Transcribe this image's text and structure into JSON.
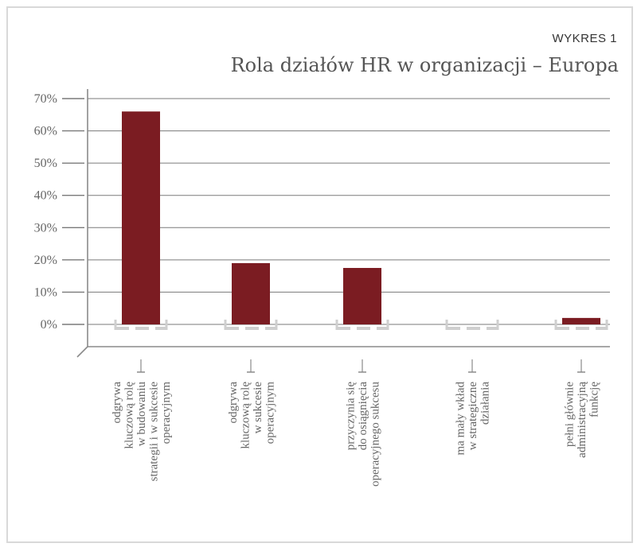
{
  "header": {
    "label": "WYKRES 1",
    "title": "Rola działów HR w organizacji – Europa"
  },
  "chart_data": {
    "type": "bar",
    "title": "Rola działów HR w organizacji – Europa",
    "xlabel": "",
    "ylabel": "",
    "ylim": [
      0,
      70
    ],
    "yticks": [
      "0%",
      "10%",
      "20%",
      "30%",
      "40%",
      "50%",
      "60%",
      "70%"
    ],
    "grid": true,
    "categories": [
      [
        "odgrywa",
        "kluczową rolę",
        "w budowaniu",
        "strategii i w sukcesie",
        "operacyjnym"
      ],
      [
        "odgrywa",
        "kluczową rolę",
        "w sukcesie",
        "operacyjnym"
      ],
      [
        "przyczynia się",
        "do osiągnięcia",
        "operacyjnego sukcesu"
      ],
      [
        "ma mały wkład",
        "w strategiczne",
        "działania"
      ],
      [
        "pełni głównie",
        "administracyjną",
        "funkcję"
      ]
    ],
    "values": [
      66,
      19,
      17.5,
      0,
      2
    ],
    "colors": {
      "bar": "#7b1c22",
      "grid": "#7a7a7a",
      "axis": "#7a7a7a",
      "dash": "#cfcfcf"
    }
  }
}
